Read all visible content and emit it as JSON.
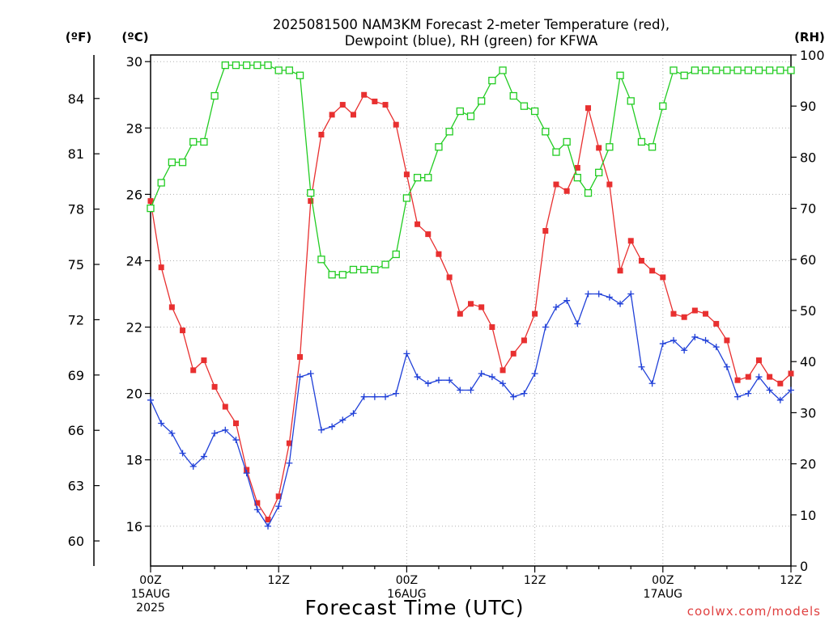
{
  "title": {
    "line1": "2025081500 NAM3KM Forecast 2-meter Temperature (red),",
    "line2": "Dewpoint (blue), RH (green) for KFWA"
  },
  "units": {
    "fahrenheit": "(ºF)",
    "celsius": "(ºC)",
    "rh": "(RH)"
  },
  "x_axis_title": "Forecast Time (UTC)",
  "credit": "coolwx.com/models",
  "chart_data": {
    "type": "line",
    "title": "2025081500 NAM3KM Forecast 2-meter Temperature (red), Dewpoint (blue), RH (green) for KFWA",
    "xlabel": "Forecast Time (UTC)",
    "x_start": "2025-08-15 00Z",
    "x_step_hours": 1,
    "xlim_hours": [
      0,
      60
    ],
    "x_tick_hours": [
      0,
      12,
      24,
      36,
      48,
      60
    ],
    "x_tick_labels": [
      [
        "00Z",
        "15AUG",
        "2025"
      ],
      [
        "12Z"
      ],
      [
        "00Z",
        "16AUG"
      ],
      [
        "12Z"
      ],
      [
        "00Z",
        "17AUG"
      ],
      [
        "12Z"
      ]
    ],
    "ylim_celsius": [
      14.8,
      30.2
    ],
    "y_ticks_celsius": [
      16,
      18,
      20,
      22,
      24,
      26,
      28,
      30
    ],
    "y_ticks_fahrenheit": [
      60,
      63,
      66,
      69,
      72,
      75,
      78,
      81,
      84
    ],
    "ylim_rh": [
      0,
      100
    ],
    "y_ticks_rh": [
      0,
      10,
      20,
      30,
      40,
      50,
      60,
      70,
      80,
      90,
      100
    ],
    "grid": true,
    "series": [
      {
        "name": "2-meter Temperature",
        "axis": "celsius",
        "color": "#e83030",
        "marker": "filled-square",
        "values": [
          25.8,
          23.8,
          22.6,
          21.9,
          20.7,
          21.0,
          20.2,
          19.6,
          19.1,
          17.7,
          16.7,
          16.2,
          16.9,
          18.5,
          21.1,
          25.8,
          27.8,
          28.4,
          28.7,
          28.4,
          29.0,
          28.8,
          28.7,
          28.1,
          26.6,
          25.1,
          24.8,
          24.2,
          23.5,
          22.4,
          22.7,
          22.6,
          22.0,
          20.7,
          21.2,
          21.6,
          22.4,
          24.9,
          26.3,
          26.1,
          26.8,
          28.6,
          27.4,
          26.3,
          23.7,
          24.6,
          24.0,
          23.7,
          23.5,
          22.4,
          22.3,
          22.5,
          22.4,
          22.1,
          21.6,
          20.4,
          20.5,
          21.0,
          20.5,
          20.3,
          20.6
        ]
      },
      {
        "name": "Dewpoint",
        "axis": "celsius",
        "color": "#2040d8",
        "marker": "plus",
        "values": [
          19.8,
          19.1,
          18.8,
          18.2,
          17.8,
          18.1,
          18.8,
          18.9,
          18.6,
          17.6,
          16.5,
          16.0,
          16.6,
          17.9,
          20.5,
          20.6,
          18.9,
          19.0,
          19.2,
          19.4,
          19.9,
          19.9,
          19.9,
          20.0,
          21.2,
          20.5,
          20.3,
          20.4,
          20.4,
          20.1,
          20.1,
          20.6,
          20.5,
          20.3,
          19.9,
          20.0,
          20.6,
          22.0,
          22.6,
          22.8,
          22.1,
          23.0,
          23.0,
          22.9,
          22.7,
          23.0,
          20.8,
          20.3,
          21.5,
          21.6,
          21.3,
          21.7,
          21.6,
          21.4,
          20.8,
          19.9,
          20.0,
          20.5,
          20.1,
          19.8,
          20.1
        ]
      },
      {
        "name": "RH",
        "axis": "rh",
        "color": "#22cc22",
        "marker": "open-square",
        "values": [
          70,
          75,
          79,
          79,
          83,
          83,
          92,
          98,
          98,
          98,
          98,
          98,
          97,
          97,
          96,
          73,
          60,
          57,
          57,
          58,
          58,
          58,
          59,
          61,
          72,
          76,
          76,
          82,
          85,
          89,
          88,
          91,
          95,
          97,
          92,
          90,
          89,
          85,
          81,
          83,
          76,
          73,
          77,
          82,
          96,
          91,
          83,
          82,
          90,
          97,
          96,
          97,
          97,
          97,
          97,
          97,
          97,
          97,
          97,
          97,
          97
        ]
      }
    ]
  }
}
